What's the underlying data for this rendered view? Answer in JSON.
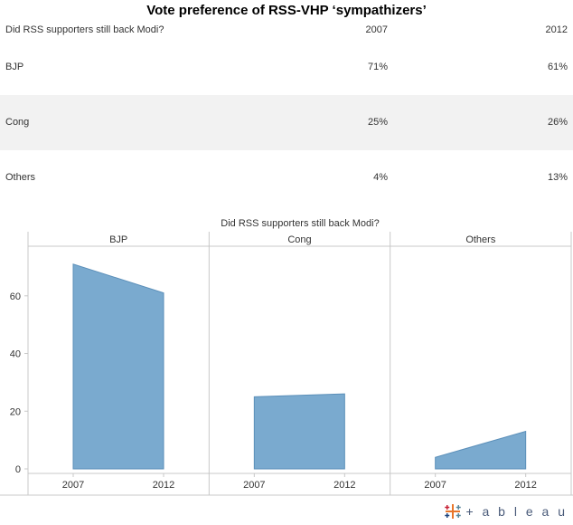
{
  "title": "Vote preference of RSS-VHP ‘sympathizers’",
  "table": {
    "question": "Did RSS supporters still back Modi?",
    "columns": [
      "2007",
      "2012"
    ],
    "rows": [
      {
        "label": "BJP",
        "v2007": "71%",
        "v2012": "61%"
      },
      {
        "label": "Cong",
        "v2007": "25%",
        "v2012": "26%"
      },
      {
        "label": "Others",
        "v2007": "4%",
        "v2012": "13%"
      }
    ]
  },
  "chart_data": {
    "type": "area",
    "title": "Did RSS supporters still back Modi?",
    "x": [
      "2007",
      "2012"
    ],
    "panels": [
      {
        "name": "BJP",
        "values": [
          71,
          61
        ]
      },
      {
        "name": "Cong",
        "values": [
          25,
          26
        ]
      },
      {
        "name": "Others",
        "values": [
          4,
          13
        ]
      }
    ],
    "y_ticks": [
      0,
      20,
      40,
      60
    ],
    "ylim": [
      0,
      75
    ],
    "color": "#7aaacf",
    "grid": false
  },
  "branding": {
    "logo_text": "+ a b l e a u"
  }
}
